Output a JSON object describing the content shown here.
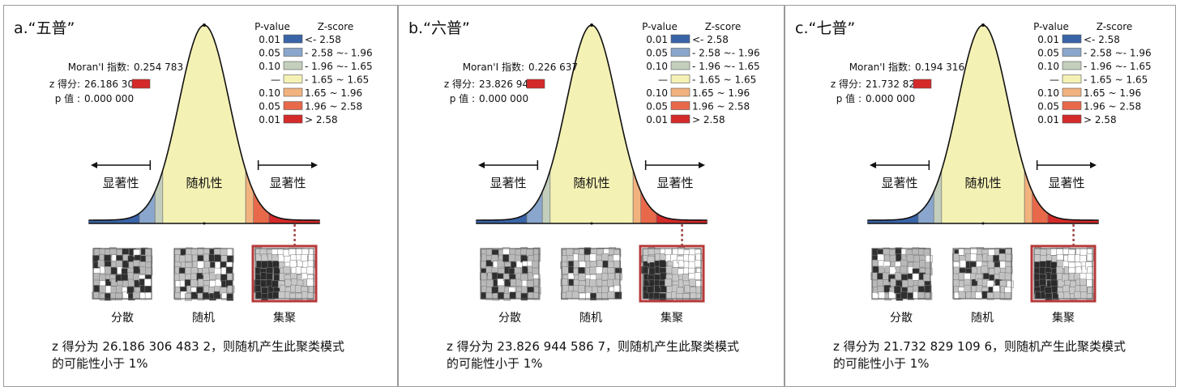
{
  "figure": {
    "panels": [
      {
        "id": "a",
        "title": "a.“五普”",
        "stats": {
          "moran_label": "Moran'I 指数:",
          "moran_value": "0.254 783",
          "z_label": "z 得分:",
          "z_value": "26.186 306",
          "p_label": "p 值 :",
          "p_value": "0.000 000"
        },
        "curve_labels": {
          "left": "显著性",
          "center": "随机性",
          "right": "显著性"
        },
        "patterns": [
          "分散",
          "随机",
          "集聚"
        ],
        "conclusion_line1": "z 得分为 26.186 306 483 2，则随机产生此聚类模式",
        "conclusion_line2": "的可能性小于 1%"
      },
      {
        "id": "b",
        "title": "b.“六普”",
        "stats": {
          "moran_label": "Moran'I 指数:",
          "moran_value": "0.226 637",
          "z_label": "z 得分:",
          "z_value": "23.826 945",
          "p_label": "p 值 :",
          "p_value": "0.000 000"
        },
        "curve_labels": {
          "left": "显著性",
          "center": "随机性",
          "right": "显著性"
        },
        "patterns": [
          "分散",
          "随机",
          "集聚"
        ],
        "conclusion_line1": "z 得分为 23.826 944 586 7，则随机产生此聚类模式",
        "conclusion_line2": "的可能性小于 1%"
      },
      {
        "id": "c",
        "title": "c.“七普”",
        "stats": {
          "moran_label": "Moran'I 指数:",
          "moran_value": "0.194 316",
          "z_label": "z 得分:",
          "z_value": "21.732 829",
          "p_label": "p 值 :",
          "p_value": "0.000 000"
        },
        "curve_labels": {
          "left": "显著性",
          "center": "随机性",
          "right": "显著性"
        },
        "patterns": [
          "分散",
          "随机",
          "集聚"
        ],
        "conclusion_line1": "z 得分为 21.732 829 109 6，则随机产生此聚类模式",
        "conclusion_line2": "的可能性小于 1%"
      }
    ],
    "legend": {
      "p_header": "P-value",
      "z_header": "Z-score",
      "rows": [
        {
          "p": "0.01",
          "z": "<- 2.58",
          "color": "#3a64a8"
        },
        {
          "p": "0.05",
          "z": "- 2.58 ~- 1.96",
          "color": "#8aa6cc"
        },
        {
          "p": "0.10",
          "z": "- 1.96 ~- 1.65",
          "color": "#c3cfbc"
        },
        {
          "p": "—",
          "z": "- 1.65 ~ 1.65",
          "color": "#f4f1b4"
        },
        {
          "p": "0.10",
          "z": "1.65 ~ 1.96",
          "color": "#f2b27e"
        },
        {
          "p": "0.05",
          "z": "1.96 ~ 2.58",
          "color": "#e8694a"
        },
        {
          "p": "0.01",
          "z": "> 2.58",
          "color": "#d42a2a"
        }
      ]
    }
  },
  "chart_data": [
    {
      "type": "area",
      "panel": "a",
      "distribution": "standard-normal",
      "x": [
        -2.58,
        -1.96,
        -1.65,
        1.65,
        1.96,
        2.58
      ],
      "observed_z": 26.186306,
      "highlighted_pattern": "集聚"
    },
    {
      "type": "area",
      "panel": "b",
      "distribution": "standard-normal",
      "x": [
        -2.58,
        -1.96,
        -1.65,
        1.65,
        1.96,
        2.58
      ],
      "observed_z": 23.826945,
      "highlighted_pattern": "集聚"
    },
    {
      "type": "area",
      "panel": "c",
      "distribution": "standard-normal",
      "x": [
        -2.58,
        -1.96,
        -1.65,
        1.65,
        1.96,
        2.58
      ],
      "observed_z": 21.732829,
      "highlighted_pattern": "集聚"
    }
  ]
}
